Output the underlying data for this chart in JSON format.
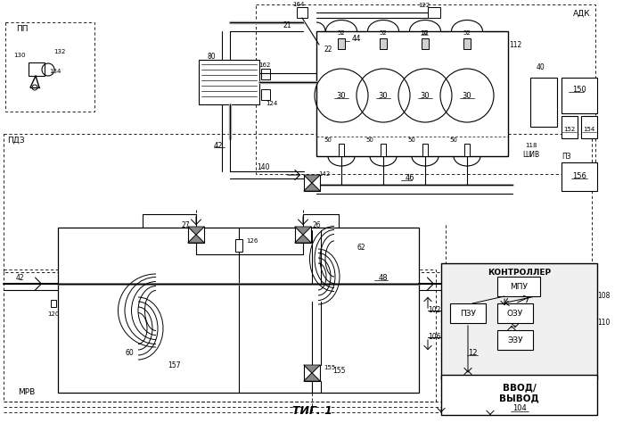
{
  "bg": "#ffffff",
  "lc": "#000000",
  "labels": {
    "ADK": "АДК",
    "PDZ": "ПДЗ",
    "MRV": "МРВ",
    "SHIV": "ШИВ",
    "PZ": "ПЗ",
    "PP": "ПП",
    "CONTROLLER": "КОНТРОЛЛЕР",
    "MPU": "МПУ",
    "PZU": "ПЗУ",
    "OZU": "ОЗУ",
    "EZU": "ЭЗУ",
    "VVOD1": "ВВОД/",
    "VVOD2": "ВЫВОД",
    "FIG": "ΤИГ. 1"
  }
}
